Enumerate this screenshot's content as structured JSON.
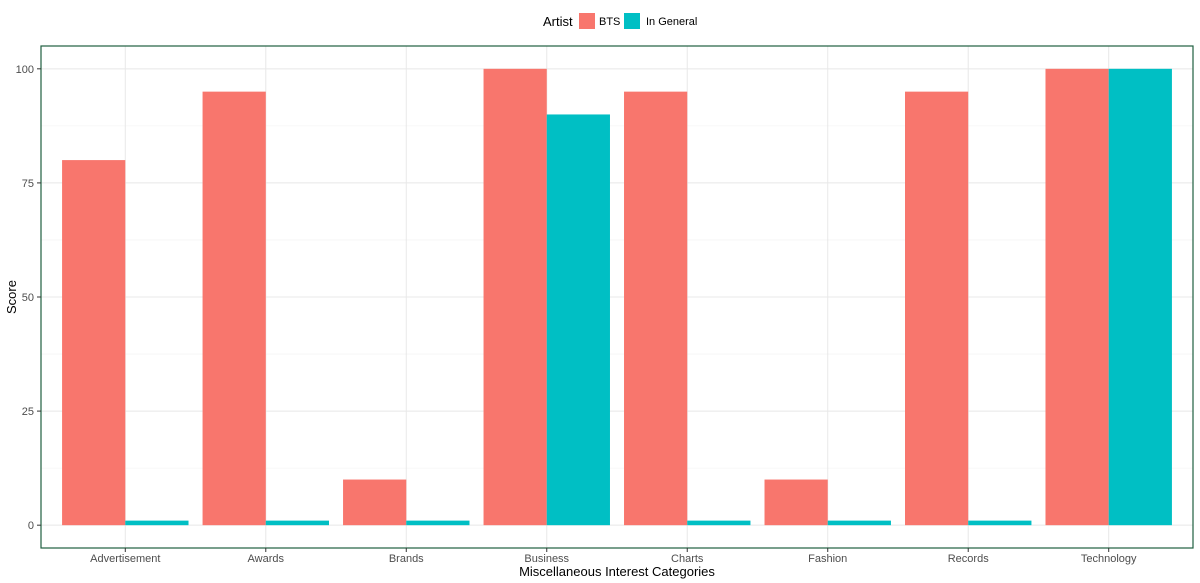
{
  "chart_data": {
    "type": "bar",
    "xlabel": "Miscellaneous Interest Categories",
    "ylabel": "Score",
    "ylim": [
      -5,
      105
    ],
    "yticks": [
      0,
      25,
      50,
      75,
      100
    ],
    "grid": true,
    "legend": {
      "title": "Artist",
      "placement": "top-center"
    },
    "categories": [
      "Advertisement",
      "Awards",
      "Brands",
      "Business",
      "Charts",
      "Fashion",
      "Records",
      "Technology"
    ],
    "series": [
      {
        "name": "BTS",
        "color": "#F8766D",
        "values": [
          80,
          95,
          10,
          100,
          95,
          10,
          95,
          100
        ]
      },
      {
        "name": "In General",
        "color": "#00BFC4",
        "values": [
          1,
          1,
          1,
          90,
          1,
          1,
          1,
          100
        ]
      }
    ]
  }
}
